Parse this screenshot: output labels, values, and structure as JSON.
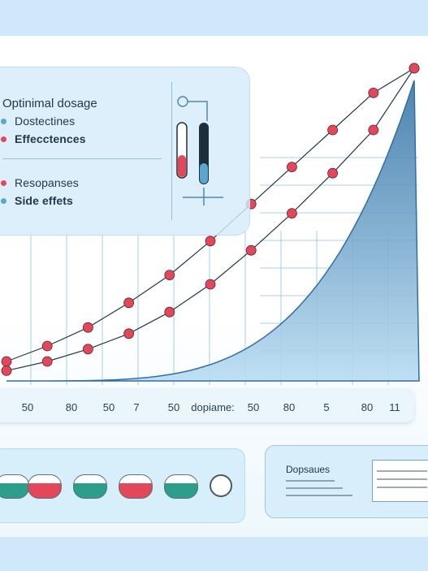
{
  "chart_data": {
    "type": "line",
    "x": [
      0,
      1,
      2,
      3,
      4,
      5,
      6,
      7,
      8,
      9,
      10
    ],
    "series": [
      {
        "color": "#e2475a",
        "values": [
          0.05,
          0.1,
          0.16,
          0.24,
          0.33,
          0.44,
          0.56,
          0.68,
          0.8,
          0.92,
          1.0
        ]
      },
      {
        "color": "#e2475a",
        "values": [
          0.02,
          0.05,
          0.09,
          0.14,
          0.21,
          0.3,
          0.41,
          0.53,
          0.66,
          0.8,
          1.0
        ]
      }
    ],
    "grid": true,
    "legend_position": "top-left"
  },
  "legend": {
    "title": "Optinimal dosage",
    "items": [
      {
        "label": "Dostectines",
        "color": "#5aa6d0",
        "bold": false
      },
      {
        "label": "Effecctences",
        "color": "#e2475a",
        "bold": true
      },
      {
        "label": "Resopanses",
        "color": "#e2475a",
        "bold": false
      },
      {
        "label": "Side effets",
        "color": "#5aa6d0",
        "bold": true
      }
    ]
  },
  "x_axis": {
    "ticks": [
      "50",
      "80",
      "50",
      "7",
      "50",
      "dopiame:",
      "50",
      "80",
      "5",
      "80",
      "11"
    ]
  },
  "pills": [
    {
      "color": "#2d9e8c"
    },
    {
      "color": "#e2475a"
    },
    {
      "color": "#2d9e8c"
    },
    {
      "color": "#e2475a"
    },
    {
      "color": "#2d9e8c"
    }
  ],
  "doc_card": {
    "title": "Dopsaues"
  },
  "colors": {
    "area_fill": "#2f6fa3",
    "accent_red": "#e2475a",
    "accent_blue": "#5aa6d0",
    "grid": "#8fc3e2"
  }
}
